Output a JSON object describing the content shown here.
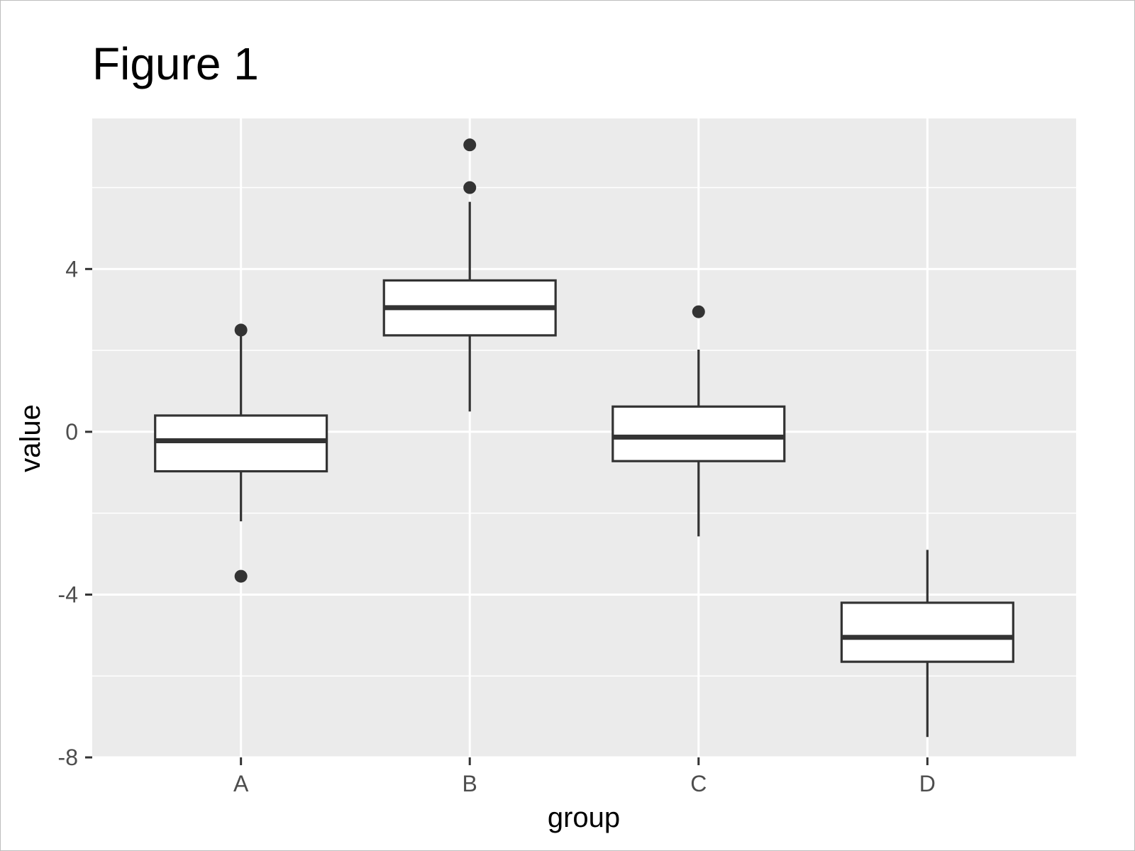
{
  "chart_data": {
    "type": "boxplot",
    "title": "Figure 1",
    "xlabel": "group",
    "ylabel": "value",
    "ylim": [
      -8,
      7.7
    ],
    "yticks": [
      -8,
      -4,
      0,
      4
    ],
    "categories": [
      "A",
      "B",
      "C",
      "D"
    ],
    "boxes": [
      {
        "group": "A",
        "whisker_low": -2.2,
        "q1": -0.97,
        "median": -0.22,
        "q3": 0.4,
        "whisker_high": 2.5,
        "outliers": [
          2.5,
          -3.55
        ]
      },
      {
        "group": "B",
        "whisker_low": 0.5,
        "q1": 2.37,
        "median": 3.05,
        "q3": 3.72,
        "whisker_high": 5.65,
        "outliers": [
          7.05,
          6.0
        ]
      },
      {
        "group": "C",
        "whisker_low": -2.57,
        "q1": -0.72,
        "median": -0.13,
        "q3": 0.62,
        "whisker_high": 2.02,
        "outliers": [
          2.95
        ]
      },
      {
        "group": "D",
        "whisker_low": -7.5,
        "q1": -5.65,
        "median": -5.05,
        "q3": -4.2,
        "whisker_high": -2.9,
        "outliers": []
      }
    ],
    "grid": true,
    "colors": {
      "panel": "#ebebeb",
      "grid": "#ffffff",
      "box_fill": "#ffffff",
      "box_line": "#333333",
      "tick_text": "#4d4d4d"
    }
  }
}
